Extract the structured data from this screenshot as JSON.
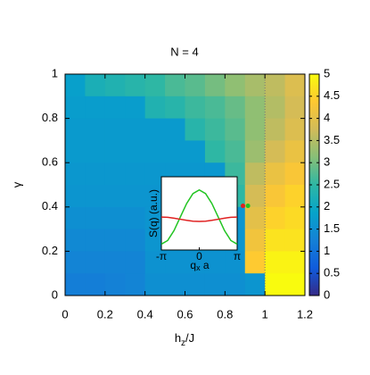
{
  "chart_data": {
    "type": "heatmap",
    "title": "N = 4",
    "xlabel_parts": [
      "h",
      "z",
      "/J"
    ],
    "ylabel": "γ",
    "x": [
      0.05,
      0.15,
      0.25,
      0.35,
      0.45,
      0.55,
      0.65,
      0.75,
      0.85,
      0.95,
      1.05,
      1.15
    ],
    "y": [
      0.95,
      0.85,
      0.75,
      0.65,
      0.55,
      0.45,
      0.35,
      0.25,
      0.15,
      0.05
    ],
    "z": [
      [
        1.8,
        2.2,
        2.3,
        2.4,
        2.5,
        2.7,
        2.8,
        3.0,
        3.2,
        3.4,
        3.6,
        3.9
      ],
      [
        1.75,
        1.75,
        1.75,
        1.75,
        2.3,
        2.4,
        2.6,
        2.7,
        2.9,
        3.2,
        3.5,
        3.8
      ],
      [
        1.7,
        1.7,
        1.7,
        1.7,
        1.7,
        1.7,
        2.4,
        2.6,
        2.8,
        3.2,
        3.6,
        3.9
      ],
      [
        1.7,
        1.7,
        1.7,
        1.7,
        1.7,
        1.7,
        1.7,
        2.5,
        2.7,
        3.3,
        3.8,
        4.1
      ],
      [
        1.65,
        1.65,
        1.65,
        1.65,
        1.65,
        1.65,
        1.65,
        1.65,
        2.6,
        3.6,
        4.1,
        4.3
      ],
      [
        1.6,
        1.6,
        1.6,
        1.6,
        1.6,
        1.6,
        1.6,
        1.6,
        2.5,
        3.8,
        4.3,
        4.5
      ],
      [
        1.5,
        1.5,
        1.5,
        1.5,
        1.6,
        1.6,
        1.6,
        1.6,
        1.6,
        4.0,
        4.5,
        4.6
      ],
      [
        1.4,
        1.4,
        1.4,
        1.4,
        1.6,
        1.6,
        1.6,
        1.6,
        1.6,
        4.2,
        4.7,
        4.7
      ],
      [
        1.3,
        1.3,
        1.3,
        1.3,
        1.55,
        1.55,
        1.55,
        1.55,
        1.55,
        4.4,
        4.9,
        4.9
      ],
      [
        1.2,
        1.2,
        1.25,
        1.3,
        1.5,
        1.5,
        1.5,
        1.5,
        1.5,
        1.6,
        5,
        5
      ]
    ],
    "xlim": [
      0,
      1.2
    ],
    "xticks": [
      0,
      0.2,
      0.4,
      0.6,
      0.8,
      1,
      1.2
    ],
    "ylim": [
      0,
      1
    ],
    "yticks": [
      0,
      0.2,
      0.4,
      0.6,
      0.8,
      1
    ],
    "zlim": [
      0,
      5
    ],
    "zticks": [
      0,
      0.5,
      1,
      1.5,
      2,
      2.5,
      3,
      3.5,
      4,
      4.5,
      5
    ],
    "colorscale": [
      "#352a87",
      "#0f5cdd",
      "#1481d6",
      "#06a4ca",
      "#2eb7a4",
      "#87bf77",
      "#d1bb59",
      "#fec832",
      "#f9fb0e"
    ],
    "vline": 1,
    "markers": [
      {
        "x": 0.89,
        "y": 0.405,
        "color": "#e02020"
      },
      {
        "x": 0.915,
        "y": 0.405,
        "color": "#22c422"
      }
    ],
    "inset": {
      "type": "line",
      "ylabel": "S(q) (a.u.)",
      "xlabel_parts": [
        "q",
        "x",
        " a"
      ],
      "x": [
        -3.1416,
        -2.618,
        -2.0944,
        -1.5708,
        -1.0472,
        -0.5236,
        0,
        0.5236,
        1.0472,
        1.5708,
        2.0944,
        2.618,
        3.1416
      ],
      "xlim": [
        -3.1416,
        3.1416
      ],
      "xticks": [
        {
          "value": -3.1416,
          "label": "-π"
        },
        0,
        {
          "value": 3.1416,
          "label": "π"
        }
      ],
      "ylim": [
        0,
        1
      ],
      "series": [
        {
          "color": "#22c422",
          "values": [
            0.08,
            0.13,
            0.265,
            0.45,
            0.635,
            0.77,
            0.82,
            0.77,
            0.635,
            0.45,
            0.265,
            0.13,
            0.08
          ]
        },
        {
          "color": "#e02020",
          "values": [
            0.45,
            0.446,
            0.435,
            0.42,
            0.405,
            0.394,
            0.39,
            0.394,
            0.405,
            0.42,
            0.435,
            0.446,
            0.45
          ]
        }
      ]
    }
  }
}
